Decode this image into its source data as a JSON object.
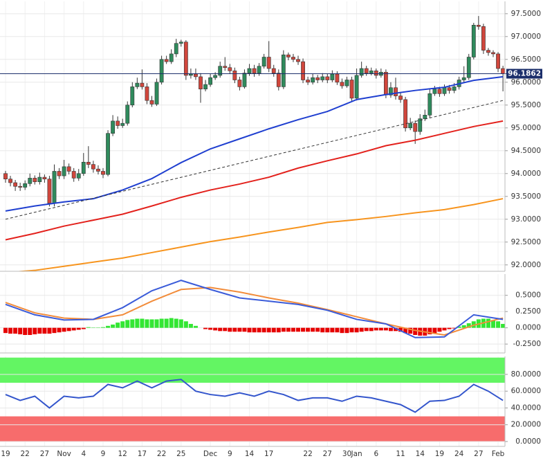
{
  "chart_data": [
    {
      "type": "candlestick",
      "categories": [
        "19",
        null,
        null,
        null,
        "22",
        null,
        null,
        null,
        "27",
        null,
        null,
        null,
        "Nov",
        null,
        null,
        null,
        "4",
        null,
        null,
        null,
        "9",
        null,
        null,
        null,
        "12",
        null,
        null,
        null,
        "17",
        null,
        null,
        null,
        "22",
        null,
        null,
        null,
        "25",
        null,
        null,
        null,
        null,
        null,
        "Dec",
        null,
        null,
        null,
        "9",
        null,
        null,
        null,
        "14",
        null,
        null,
        null,
        "17",
        null,
        null,
        null,
        null,
        null,
        null,
        null,
        "22",
        null,
        null,
        null,
        "27",
        null,
        null,
        null,
        "30",
        null,
        "Jan",
        null,
        null,
        null,
        "6",
        null,
        null,
        null,
        null,
        "11",
        null,
        null,
        null,
        "14",
        null,
        null,
        null,
        "19",
        null,
        null,
        null,
        "24",
        null,
        null,
        null,
        "27",
        null,
        null,
        null,
        "Feb",
        null
      ],
      "open": [
        94.0,
        93.88,
        93.8,
        93.72,
        93.7,
        93.78,
        93.9,
        93.82,
        93.92,
        93.88,
        93.35,
        94.05,
        93.95,
        94.15,
        94.05,
        93.9,
        94.0,
        94.25,
        94.2,
        94.1,
        94.05,
        93.98,
        94.88,
        95.15,
        95.05,
        95.1,
        95.5,
        95.9,
        95.98,
        95.9,
        95.6,
        95.52,
        96.0,
        96.5,
        96.45,
        96.62,
        96.85,
        96.88,
        96.15,
        96.18,
        96.12,
        95.85,
        95.95,
        96.1,
        96.15,
        96.35,
        96.32,
        96.25,
        96.05,
        95.9,
        96.2,
        96.3,
        96.2,
        96.35,
        96.55,
        96.3,
        96.2,
        95.9,
        96.6,
        96.55,
        96.5,
        96.45,
        96.05,
        96.0,
        96.1,
        96.05,
        96.12,
        96.05,
        96.18,
        96.0,
        95.92,
        96.05,
        95.65,
        96.15,
        96.3,
        96.2,
        96.25,
        96.15,
        96.22,
        95.72,
        95.88,
        95.7,
        95.62,
        95.0,
        95.1,
        94.92,
        95.2,
        95.28,
        95.75,
        95.85,
        95.75,
        95.88,
        95.82,
        95.9,
        96.05,
        96.1,
        96.55,
        97.25,
        97.22,
        96.7,
        96.65,
        96.62,
        96.3
      ],
      "high": [
        94.06,
        93.95,
        93.86,
        93.8,
        93.85,
        94.0,
        93.96,
        94.02,
        93.98,
        93.95,
        94.2,
        94.12,
        94.3,
        94.22,
        94.12,
        94.1,
        94.45,
        94.6,
        94.28,
        94.18,
        94.12,
        94.95,
        95.28,
        95.25,
        95.2,
        95.58,
        96.0,
        96.1,
        96.28,
        95.98,
        95.7,
        96.08,
        96.58,
        96.58,
        96.72,
        96.95,
        96.93,
        96.92,
        96.3,
        96.3,
        96.2,
        96.05,
        96.18,
        96.22,
        96.45,
        96.55,
        96.4,
        96.32,
        96.12,
        96.28,
        96.4,
        96.38,
        96.42,
        96.62,
        96.9,
        96.38,
        96.28,
        96.7,
        96.65,
        96.62,
        96.58,
        96.52,
        96.12,
        96.18,
        96.16,
        96.2,
        96.18,
        96.26,
        96.24,
        96.08,
        96.12,
        96.12,
        96.3,
        96.45,
        96.36,
        96.32,
        96.3,
        96.3,
        96.28,
        96.0,
        96.1,
        95.78,
        95.68,
        95.22,
        95.16,
        95.3,
        95.4,
        95.85,
        95.92,
        95.9,
        95.95,
        95.94,
        95.98,
        96.12,
        96.35,
        96.62,
        97.3,
        97.45,
        97.28,
        96.75,
        96.7,
        96.66,
        96.36
      ],
      "low": [
        93.8,
        93.72,
        93.62,
        93.62,
        93.64,
        93.72,
        93.76,
        93.76,
        93.8,
        93.28,
        93.28,
        93.88,
        93.88,
        93.98,
        93.82,
        93.84,
        93.95,
        94.12,
        94.02,
        93.98,
        93.9,
        93.94,
        94.82,
        94.98,
        95.0,
        95.05,
        95.45,
        95.85,
        95.84,
        95.52,
        95.46,
        95.48,
        95.95,
        96.4,
        96.4,
        96.55,
        96.78,
        96.05,
        96.08,
        96.05,
        95.55,
        95.8,
        95.9,
        96.05,
        96.1,
        96.25,
        96.18,
        95.98,
        95.82,
        95.86,
        96.14,
        96.12,
        96.14,
        96.3,
        96.22,
        96.12,
        95.82,
        95.85,
        96.48,
        96.44,
        96.38,
        95.98,
        95.94,
        95.95,
        95.98,
        96.0,
        95.98,
        96.0,
        95.94,
        95.86,
        95.88,
        95.58,
        95.6,
        96.1,
        96.14,
        96.15,
        96.08,
        96.1,
        95.65,
        95.66,
        95.62,
        95.55,
        94.92,
        94.95,
        94.65,
        94.85,
        95.15,
        95.22,
        95.7,
        95.68,
        95.7,
        95.75,
        95.76,
        95.84,
        95.98,
        96.05,
        96.5,
        97.15,
        96.62,
        96.58,
        96.55,
        96.22,
        95.8
      ],
      "close": [
        93.88,
        93.8,
        93.72,
        93.7,
        93.78,
        93.9,
        93.82,
        93.92,
        93.88,
        93.35,
        94.05,
        93.95,
        94.15,
        94.05,
        93.9,
        94.0,
        94.25,
        94.2,
        94.1,
        94.05,
        93.98,
        94.88,
        95.15,
        95.05,
        95.1,
        95.5,
        95.9,
        95.98,
        95.9,
        95.6,
        95.52,
        96.0,
        96.5,
        96.45,
        96.62,
        96.85,
        96.88,
        96.15,
        96.18,
        96.12,
        95.85,
        95.95,
        96.1,
        96.15,
        96.35,
        96.32,
        96.25,
        96.05,
        95.9,
        96.2,
        96.3,
        96.2,
        96.35,
        96.55,
        96.3,
        96.2,
        95.9,
        96.6,
        96.55,
        96.5,
        96.45,
        96.05,
        96.0,
        96.1,
        96.05,
        96.12,
        96.05,
        96.18,
        96.0,
        95.92,
        96.05,
        95.65,
        96.15,
        96.3,
        96.2,
        96.25,
        96.15,
        96.22,
        95.72,
        95.88,
        95.7,
        95.62,
        95.0,
        95.1,
        94.92,
        95.2,
        95.28,
        95.75,
        95.85,
        95.75,
        95.88,
        95.82,
        95.9,
        96.05,
        96.1,
        96.55,
        97.25,
        97.22,
        96.7,
        96.65,
        96.62,
        96.3,
        96.1862
      ],
      "up_color": "#2f8a5c",
      "down_color": "#d0463c",
      "lines": [
        {
          "color": "#f7941d",
          "x": [
            0,
            6,
            12,
            18,
            24,
            30,
            36,
            42,
            48,
            54,
            60,
            66,
            72,
            78,
            84,
            90,
            96,
            102
          ],
          "values": [
            91.83,
            91.88,
            91.97,
            92.06,
            92.15,
            92.27,
            92.39,
            92.51,
            92.61,
            92.72,
            92.82,
            92.93,
            92.99,
            93.06,
            93.14,
            93.21,
            93.32,
            93.45
          ]
        },
        {
          "color": "#e3211c",
          "x": [
            0,
            6,
            12,
            18,
            24,
            30,
            36,
            42,
            48,
            54,
            60,
            66,
            72,
            78,
            84,
            90,
            96,
            102
          ],
          "values": [
            92.55,
            92.69,
            92.85,
            92.98,
            93.11,
            93.29,
            93.48,
            93.64,
            93.77,
            93.92,
            94.12,
            94.28,
            94.43,
            94.61,
            94.73,
            94.88,
            95.03,
            95.15
          ]
        },
        {
          "color": "#1f3fd0",
          "x": [
            0,
            6,
            12,
            18,
            24,
            30,
            36,
            42,
            48,
            54,
            60,
            66,
            72,
            78,
            84,
            90,
            96,
            102
          ],
          "values": [
            93.18,
            93.29,
            93.38,
            93.45,
            93.64,
            93.89,
            94.24,
            94.54,
            94.76,
            94.98,
            95.18,
            95.36,
            95.62,
            95.73,
            95.82,
            95.89,
            96.04,
            96.12
          ]
        },
        {
          "color": "#333333",
          "dashed": true,
          "x": [
            0,
            102
          ],
          "values": [
            93.0,
            95.6
          ]
        }
      ],
      "last_price": 96.1862,
      "last_price_color": "#1c2f6b",
      "ylim": [
        91.86,
        97.77
      ],
      "yticks": [
        {
          "value": 92,
          "label": "92.0000"
        },
        {
          "value": 92.5,
          "label": "92.5000"
        },
        {
          "value": 93,
          "label": "93.0000"
        },
        {
          "value": 93.5,
          "label": "93.5000"
        },
        {
          "value": 94,
          "label": "94.0000"
        },
        {
          "value": 94.5,
          "label": "94.5000"
        },
        {
          "value": 95,
          "label": "95.0000"
        },
        {
          "value": 95.5,
          "label": "95.5000"
        },
        {
          "value": 96,
          "label": "96.0000"
        },
        {
          "value": 96.5,
          "label": "96.5000"
        },
        {
          "value": 97,
          "label": "97.0000"
        },
        {
          "value": 97.5,
          "label": "97.5000"
        }
      ],
      "grid": true
    },
    {
      "type": "macd",
      "values": [
        -0.08,
        -0.09,
        -0.09,
        -0.1,
        -0.11,
        -0.11,
        -0.1,
        -0.09,
        -0.09,
        -0.09,
        -0.08,
        -0.07,
        -0.06,
        -0.05,
        -0.04,
        -0.03,
        -0.02,
        0.01,
        0.005,
        0.005,
        0.01,
        0.03,
        0.05,
        0.08,
        0.1,
        0.12,
        0.13,
        0.14,
        0.14,
        0.13,
        0.13,
        0.13,
        0.14,
        0.14,
        0.15,
        0.14,
        0.13,
        0.1,
        0.06,
        0.03,
        0,
        -0.02,
        -0.03,
        -0.04,
        -0.05,
        -0.05,
        -0.06,
        -0.06,
        -0.06,
        -0.06,
        -0.07,
        -0.07,
        -0.07,
        -0.07,
        -0.07,
        -0.07,
        -0.07,
        -0.06,
        -0.06,
        -0.06,
        -0.06,
        -0.06,
        -0.06,
        -0.06,
        -0.06,
        -0.07,
        -0.07,
        -0.07,
        -0.07,
        -0.08,
        -0.08,
        -0.07,
        -0.07,
        -0.06,
        -0.05,
        -0.05,
        -0.04,
        -0.04,
        -0.04,
        -0.05,
        -0.05,
        -0.06,
        -0.08,
        -0.09,
        -0.11,
        -0.12,
        -0.12,
        -0.1,
        -0.08,
        -0.06,
        -0.04,
        -0.02,
        -0.01,
        0.02,
        0.04,
        0.07,
        0.1,
        0.13,
        0.14,
        0.14,
        0.12,
        0.1,
        0.06
      ],
      "up_color": "#33e633",
      "down_color": "#e60000",
      "lines": [
        {
          "color": "#f28c3a",
          "x": [
            0,
            6,
            12,
            18,
            24,
            30,
            36,
            42,
            48,
            54,
            60,
            66,
            72,
            78,
            84,
            90,
            96,
            102
          ],
          "values": [
            0.39,
            0.23,
            0.15,
            0.13,
            0.2,
            0.41,
            0.59,
            0.62,
            0.55,
            0.46,
            0.38,
            0.28,
            0.17,
            0.06,
            -0.04,
            -0.11,
            0.04,
            0.15
          ]
        },
        {
          "color": "#3a5bd9",
          "x": [
            0,
            6,
            12,
            18,
            24,
            30,
            36,
            42,
            48,
            54,
            60,
            66,
            72,
            78,
            84,
            90,
            96,
            102
          ],
          "values": [
            0.36,
            0.2,
            0.12,
            0.13,
            0.31,
            0.57,
            0.73,
            0.59,
            0.46,
            0.41,
            0.36,
            0.27,
            0.13,
            0.06,
            -0.15,
            -0.14,
            0.2,
            0.13
          ]
        }
      ],
      "ylim": [
        -0.387,
        0.827
      ],
      "yticks": [
        {
          "value": -0.25,
          "label": "-0.2500"
        },
        {
          "value": 0,
          "label": "0.0000"
        },
        {
          "value": 0.25,
          "label": "0.2500"
        },
        {
          "value": 0.5,
          "label": "0.5000"
        }
      ],
      "grid": true
    },
    {
      "type": "line",
      "zones": [
        {
          "from": 70,
          "to": 100,
          "color": "#63f563"
        },
        {
          "from": 0,
          "to": 30,
          "color": "#f76c6c"
        }
      ],
      "lines": [
        {
          "color": "#3355cc",
          "x": [
            0,
            3,
            6,
            9,
            12,
            15,
            18,
            21,
            24,
            27,
            30,
            33,
            36,
            39,
            42,
            45,
            48,
            51,
            54,
            57,
            60,
            63,
            66,
            69,
            72,
            75,
            78,
            81,
            84,
            87,
            90,
            93,
            96,
            99,
            102
          ],
          "values": [
            56,
            49,
            54,
            40,
            54,
            52,
            54,
            68,
            64,
            72,
            64,
            72,
            74,
            60,
            56,
            54,
            58,
            54,
            60,
            56,
            49,
            52,
            52,
            48,
            54,
            52,
            48,
            44,
            35,
            48,
            49,
            54,
            68,
            60,
            49
          ]
        }
      ],
      "ylim": [
        -5.8,
        101.4
      ],
      "yticks": [
        {
          "value": 0,
          "label": "0.0000"
        },
        {
          "value": 20,
          "label": "20.0000"
        },
        {
          "value": 40,
          "label": "40.0000"
        },
        {
          "value": 60,
          "label": "60.0000"
        },
        {
          "value": 80,
          "label": "80.0000"
        }
      ],
      "grid": true
    }
  ]
}
